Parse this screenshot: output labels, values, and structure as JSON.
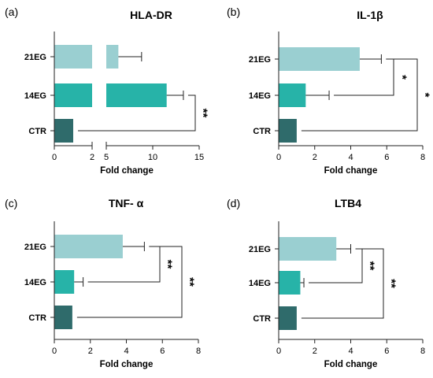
{
  "colors": {
    "CTR": "#2f6b6b",
    "14EG": "#27b3a8",
    "21EG": "#9acfd1",
    "axis": "#222222"
  },
  "chart_data": [
    {
      "type": "bar",
      "orientation": "horizontal",
      "panel_label": "(a)",
      "title": "HLA-DR",
      "xlabel": "Fold change",
      "ylabel": "",
      "categories": [
        "21EG",
        "14EG",
        "CTR"
      ],
      "values": [
        6.3,
        11.5,
        1.0
      ],
      "errors": [
        2.5,
        1.8,
        0
      ],
      "xlim": [
        0,
        15
      ],
      "axis_break": [
        2,
        5
      ],
      "xticks": [
        0,
        2,
        5,
        10,
        15
      ],
      "significance": [
        {
          "from": "14EG",
          "to": "CTR",
          "label": "**"
        }
      ],
      "grid": false
    },
    {
      "type": "bar",
      "orientation": "horizontal",
      "panel_label": "(b)",
      "title": "IL-1β",
      "xlabel": "Fold change",
      "ylabel": "",
      "categories": [
        "21EG",
        "14EG",
        "CTR"
      ],
      "values": [
        4.5,
        1.5,
        1.0
      ],
      "errors": [
        1.2,
        1.3,
        0
      ],
      "xlim": [
        0,
        8
      ],
      "xticks": [
        0,
        2,
        4,
        6,
        8
      ],
      "significance": [
        {
          "from": "21EG",
          "to": "14EG",
          "label": "*"
        },
        {
          "from": "21EG",
          "to": "CTR",
          "label": "*"
        }
      ],
      "grid": false
    },
    {
      "type": "bar",
      "orientation": "horizontal",
      "panel_label": "(c)",
      "title": "TNF- α",
      "xlabel": "Fold change",
      "ylabel": "",
      "categories": [
        "21EG",
        "14EG",
        "CTR"
      ],
      "values": [
        3.8,
        1.1,
        1.0
      ],
      "errors": [
        1.2,
        0.5,
        0
      ],
      "xlim": [
        0,
        8
      ],
      "xticks": [
        0,
        2,
        4,
        6,
        8
      ],
      "significance": [
        {
          "from": "21EG",
          "to": "14EG",
          "label": "**"
        },
        {
          "from": "21EG",
          "to": "CTR",
          "label": "**"
        }
      ],
      "grid": false
    },
    {
      "type": "bar",
      "orientation": "horizontal",
      "panel_label": "(d)",
      "title": "LTB4",
      "xlabel": "Fold change",
      "ylabel": "",
      "categories": [
        "21EG",
        "14EG",
        "CTR"
      ],
      "values": [
        3.2,
        1.2,
        1.0
      ],
      "errors": [
        0.8,
        0.2,
        0
      ],
      "xlim": [
        0,
        8
      ],
      "xticks": [
        0,
        2,
        4,
        6,
        8
      ],
      "significance": [
        {
          "from": "21EG",
          "to": "14EG",
          "label": "**"
        },
        {
          "from": "21EG",
          "to": "CTR",
          "label": "**"
        }
      ],
      "grid": false
    }
  ]
}
